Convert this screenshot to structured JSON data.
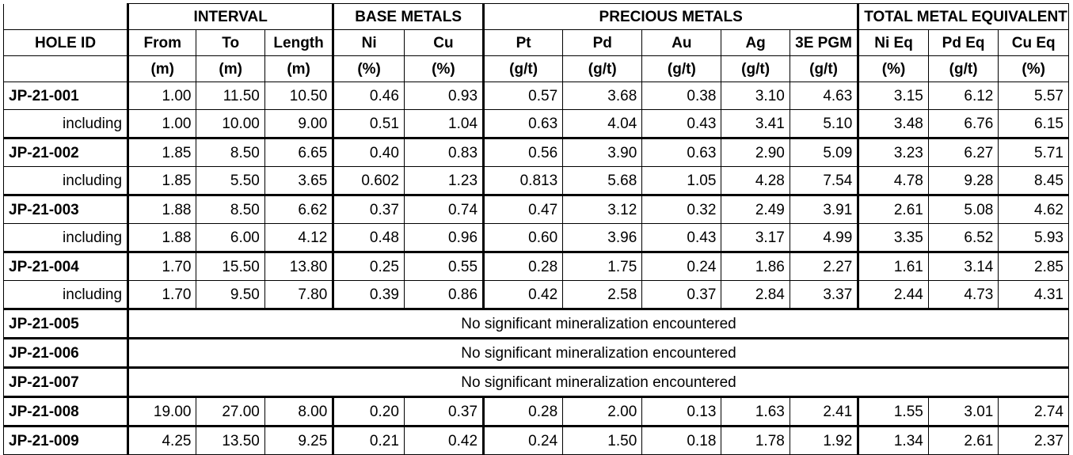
{
  "groups": {
    "interval": "INTERVAL",
    "base": "BASE METALS",
    "precious": "PRECIOUS METALS",
    "total": "TOTAL METAL EQUIVALENT"
  },
  "hole_id_header": "HOLE ID",
  "columns": [
    {
      "name": "From",
      "unit": "(m)"
    },
    {
      "name": "To",
      "unit": "(m)"
    },
    {
      "name": "Length",
      "unit": "(m)"
    },
    {
      "name": "Ni",
      "unit": "(%)"
    },
    {
      "name": "Cu",
      "unit": "(%)"
    },
    {
      "name": "Pt",
      "unit": "(g/t)"
    },
    {
      "name": "Pd",
      "unit": "(g/t)"
    },
    {
      "name": "Au",
      "unit": "(g/t)"
    },
    {
      "name": "Ag",
      "unit": "(g/t)"
    },
    {
      "name": "3E PGM",
      "unit": "(g/t)"
    },
    {
      "name": "Ni Eq",
      "unit": "(%)"
    },
    {
      "name": "Pd Eq",
      "unit": "(g/t)"
    },
    {
      "name": "Cu Eq",
      "unit": "(%)"
    }
  ],
  "rows": [
    {
      "id": "JP-21-001",
      "vals": [
        "1.00",
        "11.50",
        "10.50",
        "0.46",
        "0.93",
        "0.57",
        "3.68",
        "0.38",
        "3.10",
        "4.63",
        "3.15",
        "6.12",
        "5.57"
      ]
    },
    {
      "id": "including",
      "sub": true,
      "vals": [
        "1.00",
        "10.00",
        "9.00",
        "0.51",
        "1.04",
        "0.63",
        "4.04",
        "0.43",
        "3.41",
        "5.10",
        "3.48",
        "6.76",
        "6.15"
      ]
    },
    {
      "id": "JP-21-002",
      "vals": [
        "1.85",
        "8.50",
        "6.65",
        "0.40",
        "0.83",
        "0.56",
        "3.90",
        "0.63",
        "2.90",
        "5.09",
        "3.23",
        "6.27",
        "5.71"
      ]
    },
    {
      "id": "including",
      "sub": true,
      "vals": [
        "1.85",
        "5.50",
        "3.65",
        "0.602",
        "1.23",
        "0.813",
        "5.68",
        "1.05",
        "4.28",
        "7.54",
        "4.78",
        "9.28",
        "8.45"
      ]
    },
    {
      "id": "JP-21-003",
      "vals": [
        "1.88",
        "8.50",
        "6.62",
        "0.37",
        "0.74",
        "0.47",
        "3.12",
        "0.32",
        "2.49",
        "3.91",
        "2.61",
        "5.08",
        "4.62"
      ]
    },
    {
      "id": "including",
      "sub": true,
      "vals": [
        "1.88",
        "6.00",
        "4.12",
        "0.48",
        "0.96",
        "0.60",
        "3.96",
        "0.43",
        "3.17",
        "4.99",
        "3.35",
        "6.52",
        "5.93"
      ]
    },
    {
      "id": "JP-21-004",
      "vals": [
        "1.70",
        "15.50",
        "13.80",
        "0.25",
        "0.55",
        "0.28",
        "1.75",
        "0.24",
        "1.86",
        "2.27",
        "1.61",
        "3.14",
        "2.85"
      ]
    },
    {
      "id": "including",
      "sub": true,
      "vals": [
        "1.70",
        "9.50",
        "7.80",
        "0.39",
        "0.86",
        "0.42",
        "2.58",
        "0.37",
        "2.84",
        "3.37",
        "2.44",
        "4.73",
        "4.31"
      ]
    },
    {
      "id": "JP-21-005",
      "note": "No significant mineralization encountered"
    },
    {
      "id": "JP-21-006",
      "note": "No significant mineralization encountered"
    },
    {
      "id": "JP-21-007",
      "note": "No significant mineralization encountered"
    },
    {
      "id": "JP-21-008",
      "vals": [
        "19.00",
        "27.00",
        "8.00",
        "0.20",
        "0.37",
        "0.28",
        "2.00",
        "0.13",
        "1.63",
        "2.41",
        "1.55",
        "3.01",
        "2.74"
      ]
    },
    {
      "id": "JP-21-009",
      "vals": [
        "4.25",
        "13.50",
        "9.25",
        "0.21",
        "0.42",
        "0.24",
        "1.50",
        "0.18",
        "1.78",
        "1.92",
        "1.34",
        "2.61",
        "2.37"
      ]
    }
  ]
}
